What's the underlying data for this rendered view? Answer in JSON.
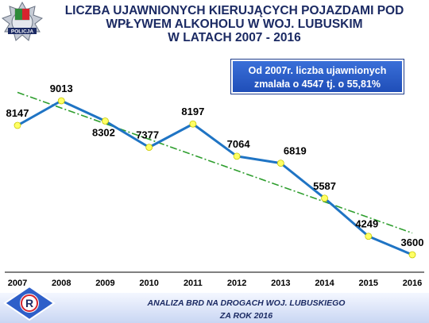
{
  "header": {
    "title_line1": "LICZBA UJAWNIONYCH KIERUJĄCYCH POJAZDAMI POD",
    "title_line2": "WPŁYWEM ALKOHOLU W WOJ. LUBUSKIM",
    "title_line3": "W LATACH 2007 - 2016",
    "logo_text": "POLICJA"
  },
  "callout": {
    "line1": "Od 2007r. liczba ujawnionych",
    "line2": "zmalała o 4547 tj. o 55,81%"
  },
  "footer": {
    "line1": "ANALIZA BRD NA DROGACH WOJ. LUBUSKIEGO",
    "line2": "ZA ROK 2016",
    "logo_letter": "R"
  },
  "colors": {
    "line": "#1f74c4",
    "marker": "#ffff66",
    "trend": "#2e9e2e",
    "title": "#1b2a63",
    "callout_bg": "#2a5cc8"
  },
  "chart_data": {
    "type": "line",
    "categories": [
      "2007",
      "2008",
      "2009",
      "2010",
      "2011",
      "2012",
      "2013",
      "2014",
      "2015",
      "2016"
    ],
    "series": [
      {
        "values": [
          8147,
          9013,
          8302,
          7377,
          8197,
          7064,
          6819,
          5587,
          4249,
          3600
        ]
      }
    ],
    "trendline": {
      "style": "dash-dot",
      "type": "linear"
    },
    "ylim": [
      3000,
      9500
    ],
    "grid": false,
    "legend": "none"
  }
}
